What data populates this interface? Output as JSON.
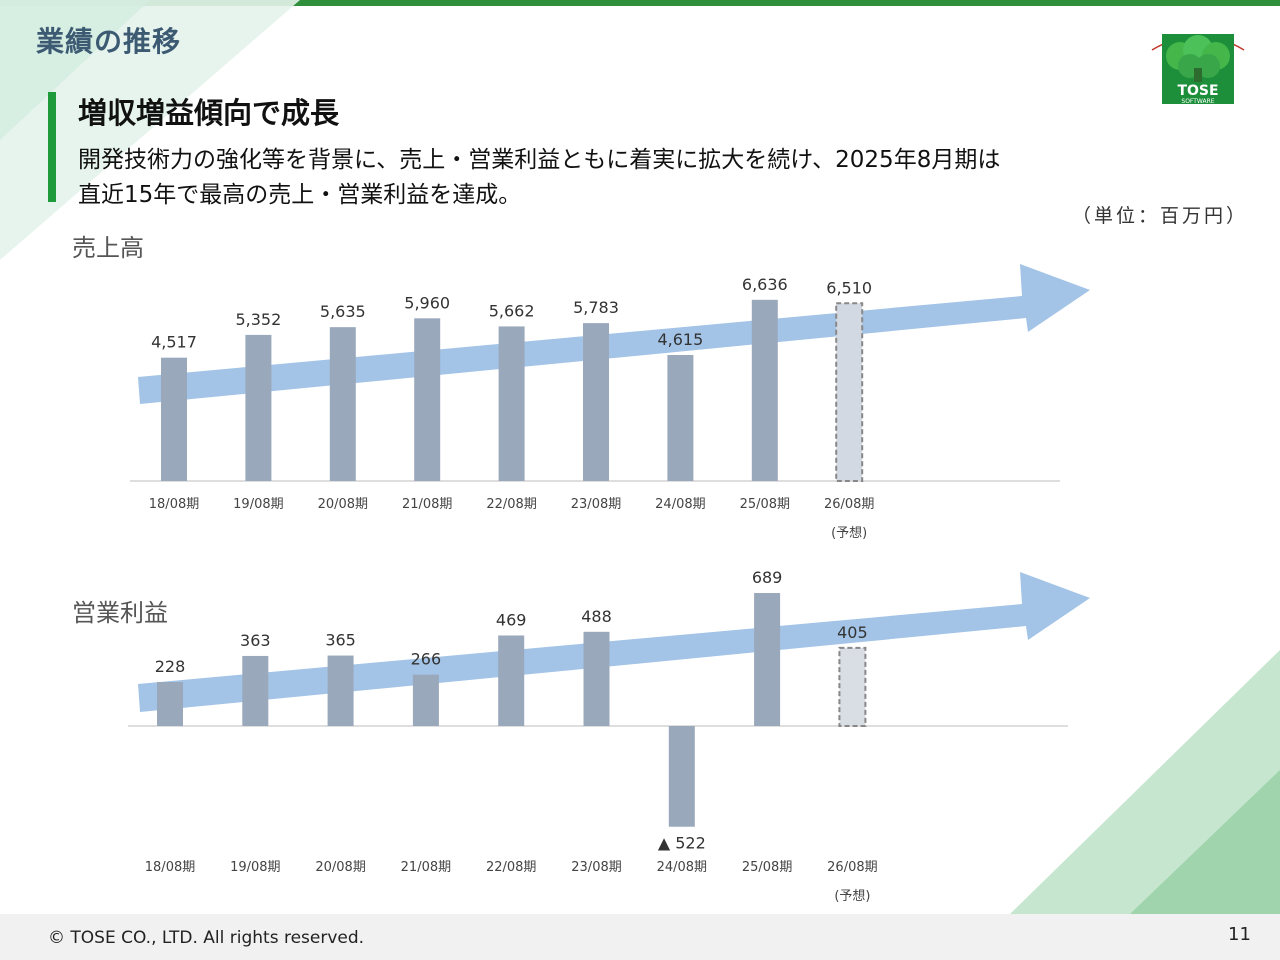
{
  "slide": {
    "section_title": "業績の推移",
    "headline": "増収増益傾向で成長",
    "description_line1": "開発技術力の強化等を背景に、売上・営業利益ともに着実に拡大を続け、2025年8月期は",
    "description_line2": "直近15年で最高の売上・営業利益を達成。",
    "unit": "（単位：百万円）",
    "copyright": "© TOSE CO., LTD. All rights reserved.",
    "page_number": "11",
    "logo_text": "TOSE",
    "logo_subtext": "SOFTWARE"
  },
  "colors": {
    "brand_green": "#1f9a3a",
    "title_blue": "#3d5a73",
    "bar": "#9aa8bc",
    "forecast_bar": "#d3d9e3",
    "arrow": "#a3c4e6"
  },
  "chart_data": [
    {
      "type": "bar",
      "title": "売上高",
      "categories": [
        "18/08期",
        "19/08期",
        "20/08期",
        "21/08期",
        "22/08期",
        "23/08期",
        "24/08期",
        "25/08期",
        "26/08期"
      ],
      "forecast_note": "(予想)",
      "values": [
        4517,
        5352,
        5635,
        5960,
        5662,
        5783,
        4615,
        6636,
        6510
      ],
      "value_labels": [
        "4,517",
        "5,352",
        "5,635",
        "5,960",
        "5,662",
        "5,783",
        "4,615",
        "6,636",
        "6,510"
      ],
      "forecast_index": 8,
      "ylim": [
        0,
        7000
      ],
      "xlabel": "",
      "ylabel": ""
    },
    {
      "type": "bar",
      "title": "営業利益",
      "categories": [
        "18/08期",
        "19/08期",
        "20/08期",
        "21/08期",
        "22/08期",
        "23/08期",
        "24/08期",
        "25/08期",
        "26/08期"
      ],
      "forecast_note": "(予想)",
      "values": [
        228,
        363,
        365,
        266,
        469,
        488,
        -522,
        689,
        405
      ],
      "value_labels": [
        "228",
        "363",
        "365",
        "266",
        "469",
        "488",
        "▲ 522",
        "689",
        "405"
      ],
      "forecast_index": 8,
      "ylim": [
        -600,
        800
      ],
      "xlabel": "",
      "ylabel": ""
    }
  ]
}
